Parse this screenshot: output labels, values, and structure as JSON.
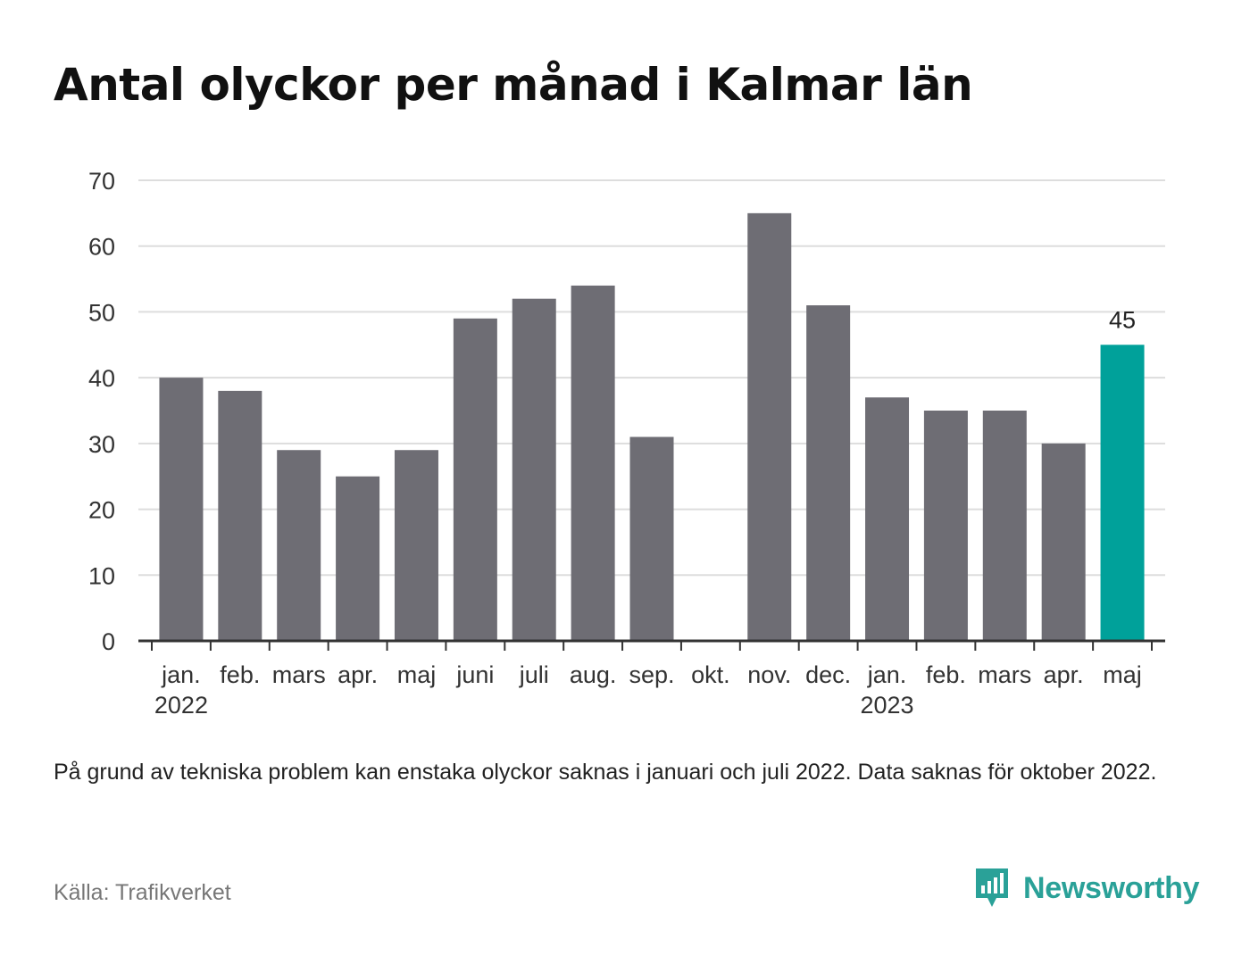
{
  "title": "Antal olyckor per månad i Kalmar län",
  "note": "På grund av tekniska problem kan enstaka olyckor saknas i januari och juli 2022. Data saknas för oktober 2022.",
  "source": "Källa: Trafikverket",
  "brand": {
    "name": "Newsworthy",
    "icon": "bar-chart-logo-icon",
    "color": "#2aa198"
  },
  "colors": {
    "bar": "#6e6d74",
    "highlight": "#00a19a",
    "grid": "#dddddd",
    "axis": "#333333"
  },
  "chart_data": {
    "type": "bar",
    "categories": [
      "jan.",
      "feb.",
      "mars",
      "apr.",
      "maj",
      "juni",
      "juli",
      "aug.",
      "sep.",
      "okt.",
      "nov.",
      "dec.",
      "jan.",
      "feb.",
      "mars",
      "apr.",
      "maj"
    ],
    "year_labels": [
      {
        "label": "2022",
        "category_index": 0
      },
      {
        "label": "2023",
        "category_index": 12
      }
    ],
    "values": [
      40,
      38,
      29,
      25,
      29,
      49,
      52,
      54,
      31,
      null,
      65,
      51,
      37,
      35,
      35,
      30,
      45
    ],
    "highlight_index": 16,
    "data_labels": [
      {
        "index": 16,
        "text": "45"
      }
    ],
    "yticks": [
      0,
      10,
      20,
      30,
      40,
      50,
      60,
      70
    ],
    "ylim": [
      0,
      70
    ],
    "xlabel": "",
    "ylabel": "",
    "grid": true,
    "legend": "none"
  }
}
